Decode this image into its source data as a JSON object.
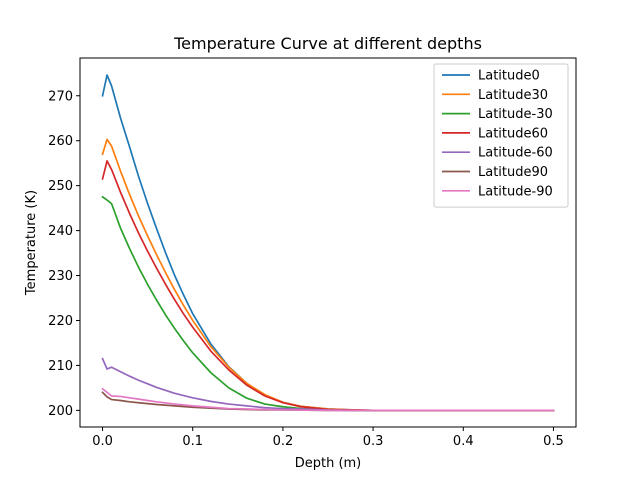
{
  "chart_data": {
    "type": "line",
    "title": "Temperature Curve at different depths",
    "xlabel": "Depth (m)",
    "ylabel": "Temperature (K)",
    "xlim": [
      -0.025,
      0.525
    ],
    "ylim": [
      196.3,
      278.4
    ],
    "xticks": [
      0.0,
      0.1,
      0.2,
      0.3,
      0.4,
      0.5
    ],
    "xtick_labels": [
      "0.0",
      "0.1",
      "0.2",
      "0.3",
      "0.4",
      "0.5"
    ],
    "yticks": [
      200,
      210,
      220,
      230,
      240,
      250,
      260,
      270
    ],
    "ytick_labels": [
      "200",
      "210",
      "220",
      "230",
      "240",
      "250",
      "260",
      "270"
    ],
    "grid": false,
    "legend_position": "top-right",
    "series": [
      {
        "name": "Latitude0",
        "color": "#1f77b4",
        "x": [
          0.0,
          0.005,
          0.01,
          0.02,
          0.03,
          0.04,
          0.05,
          0.06,
          0.07,
          0.08,
          0.09,
          0.1,
          0.12,
          0.14,
          0.16,
          0.18,
          0.2,
          0.22,
          0.25,
          0.28,
          0.3,
          0.35,
          0.4,
          0.45,
          0.5
        ],
        "y": [
          270.0,
          274.6,
          272.2,
          265.0,
          258.6,
          252.0,
          246.0,
          240.4,
          235.0,
          230.0,
          225.6,
          221.5,
          214.8,
          209.7,
          206.0,
          203.3,
          201.8,
          200.9,
          200.3,
          200.1,
          200.0,
          200.0,
          200.0,
          200.0,
          200.0
        ]
      },
      {
        "name": "Latitude30",
        "color": "#ff7f0e",
        "x": [
          0.0,
          0.005,
          0.01,
          0.02,
          0.03,
          0.04,
          0.05,
          0.06,
          0.07,
          0.08,
          0.09,
          0.1,
          0.12,
          0.14,
          0.16,
          0.18,
          0.2,
          0.22,
          0.25,
          0.28,
          0.3,
          0.35,
          0.4,
          0.45,
          0.5
        ],
        "y": [
          257.0,
          260.3,
          258.8,
          253.2,
          248.0,
          243.2,
          238.8,
          234.6,
          230.6,
          226.8,
          223.3,
          220.0,
          214.2,
          209.6,
          206.0,
          203.5,
          201.8,
          200.9,
          200.3,
          200.1,
          200.0,
          200.0,
          200.0,
          200.0,
          200.0
        ]
      },
      {
        "name": "Latitude-30",
        "color": "#2ca02c",
        "x": [
          0.0,
          0.005,
          0.01,
          0.02,
          0.03,
          0.04,
          0.05,
          0.06,
          0.07,
          0.08,
          0.09,
          0.1,
          0.12,
          0.14,
          0.16,
          0.18,
          0.2,
          0.22,
          0.25,
          0.28,
          0.3,
          0.35,
          0.4,
          0.45,
          0.5
        ],
        "y": [
          247.5,
          246.8,
          246.0,
          240.5,
          236.0,
          231.8,
          228.0,
          224.5,
          221.2,
          218.2,
          215.4,
          212.8,
          208.4,
          205.0,
          202.7,
          201.4,
          200.8,
          200.4,
          200.1,
          200.0,
          200.0,
          200.0,
          200.0,
          200.0,
          200.0
        ]
      },
      {
        "name": "Latitude60",
        "color": "#d62728",
        "x": [
          0.0,
          0.005,
          0.01,
          0.02,
          0.03,
          0.04,
          0.05,
          0.06,
          0.07,
          0.08,
          0.09,
          0.1,
          0.12,
          0.14,
          0.16,
          0.18,
          0.2,
          0.22,
          0.25,
          0.28,
          0.3,
          0.35,
          0.4,
          0.45,
          0.5
        ],
        "y": [
          251.5,
          255.5,
          253.6,
          248.5,
          243.8,
          239.4,
          235.4,
          231.6,
          228.0,
          224.6,
          221.4,
          218.5,
          213.2,
          209.0,
          205.6,
          203.2,
          201.7,
          200.8,
          200.2,
          200.1,
          200.0,
          200.0,
          200.0,
          200.0,
          200.0
        ]
      },
      {
        "name": "Latitude-60",
        "color": "#9467bd",
        "x": [
          0.0,
          0.005,
          0.01,
          0.02,
          0.03,
          0.04,
          0.05,
          0.06,
          0.08,
          0.1,
          0.12,
          0.14,
          0.16,
          0.18,
          0.2,
          0.22,
          0.25,
          0.28,
          0.3,
          0.35,
          0.4,
          0.45,
          0.5
        ],
        "y": [
          211.5,
          209.2,
          209.6,
          208.6,
          207.6,
          206.7,
          205.9,
          205.1,
          203.8,
          202.8,
          202.0,
          201.4,
          201.0,
          200.6,
          200.4,
          200.3,
          200.1,
          200.0,
          200.0,
          200.0,
          200.0,
          200.0,
          200.0
        ]
      },
      {
        "name": "Latitude90",
        "color": "#8c564b",
        "x": [
          0.0,
          0.005,
          0.01,
          0.02,
          0.03,
          0.04,
          0.05,
          0.06,
          0.08,
          0.1,
          0.12,
          0.14,
          0.16,
          0.18,
          0.2,
          0.25,
          0.3,
          0.35,
          0.4,
          0.45,
          0.5
        ],
        "y": [
          204.0,
          203.0,
          202.4,
          202.2,
          201.9,
          201.7,
          201.5,
          201.3,
          201.0,
          200.7,
          200.5,
          200.3,
          200.2,
          200.1,
          200.1,
          200.0,
          200.0,
          200.0,
          200.0,
          200.0,
          200.0
        ]
      },
      {
        "name": "Latitude-90",
        "color": "#e377c2",
        "x": [
          0.0,
          0.005,
          0.01,
          0.02,
          0.03,
          0.04,
          0.05,
          0.06,
          0.08,
          0.1,
          0.12,
          0.14,
          0.16,
          0.18,
          0.2,
          0.25,
          0.3,
          0.35,
          0.4,
          0.45,
          0.5
        ],
        "y": [
          204.8,
          204.0,
          203.2,
          203.1,
          202.8,
          202.5,
          202.2,
          201.9,
          201.4,
          201.0,
          200.7,
          200.4,
          200.3,
          200.2,
          200.1,
          200.0,
          200.0,
          200.0,
          200.0,
          200.0,
          200.0
        ]
      }
    ]
  }
}
